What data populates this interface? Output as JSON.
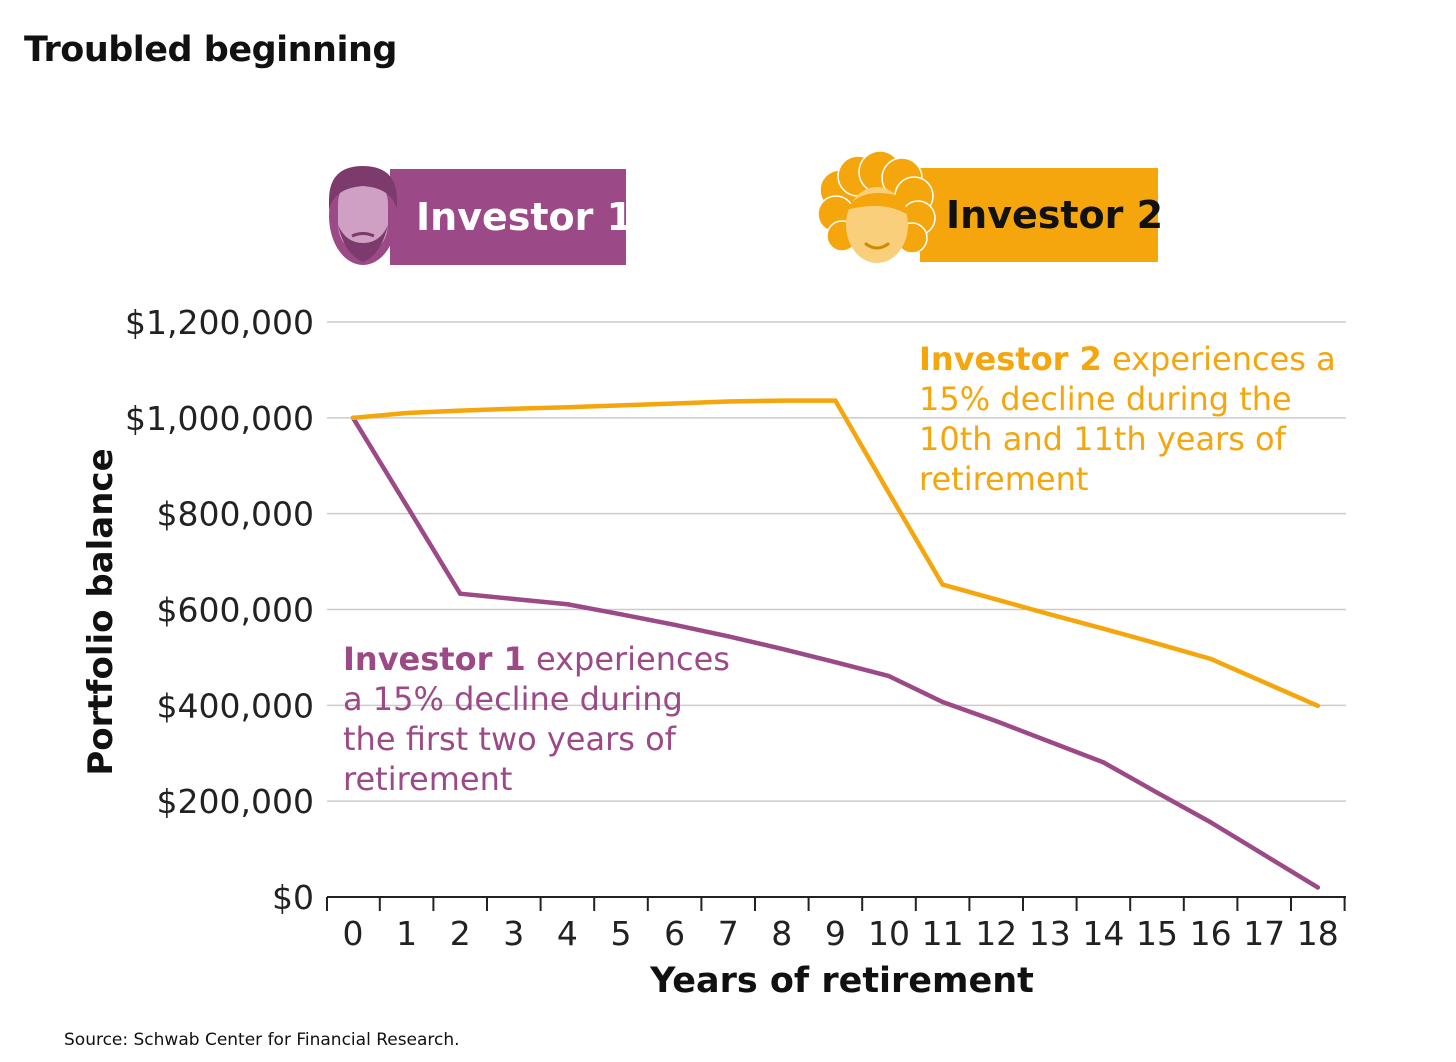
{
  "title": "Troubled beginning",
  "source": "Source: Schwab Center for Financial Research.",
  "colors": {
    "investor1": "#9c4a87",
    "investor1_face": "#cfa0c3",
    "investor2": "#f4a60c",
    "investor2_face": "#f9cf7c",
    "grid": "#cccccc",
    "axis": "#222222"
  },
  "legend": [
    {
      "label": "Investor 1",
      "icon": "bearded-man-avatar-icon"
    },
    {
      "label": "Investor 2",
      "icon": "curly-hair-woman-avatar-icon"
    }
  ],
  "annotations": [
    {
      "bold": "Investor 1",
      "lines": [
        " experiences",
        "a 15% decline during",
        "the first two years of",
        "retirement"
      ]
    },
    {
      "bold": "Investor 2",
      "lines": [
        " experiences a",
        "15% decline during the",
        "10th and 11th years of",
        "retirement"
      ]
    }
  ],
  "chart_data": {
    "type": "line",
    "title": "",
    "xlabel": "Years of retirement",
    "ylabel": "Portfolio balance",
    "x": [
      0,
      1,
      2,
      3,
      4,
      5,
      6,
      7,
      8,
      9,
      10,
      11,
      12,
      13,
      14,
      15,
      16,
      17,
      18
    ],
    "x_tick_labels": [
      "0",
      "1",
      "2",
      "3",
      "4",
      "5",
      "6",
      "7",
      "8",
      "9",
      "10",
      "11",
      "12",
      "13",
      "14",
      "15",
      "16",
      "17",
      "18"
    ],
    "ylim": [
      0,
      1200000
    ],
    "y_ticks": [
      0,
      200000,
      400000,
      600000,
      800000,
      1000000,
      1200000
    ],
    "y_tick_labels": [
      "$0",
      "$200,000",
      "$400,000",
      "$600,000",
      "$800,000",
      "$1,000,000",
      "$1,200,000"
    ],
    "grid": true,
    "series": [
      {
        "name": "Investor 1",
        "values": [
          1000000,
          817000,
          633000,
          622000,
          611000,
          590000,
          568000,
          544000,
          518000,
          490000,
          461000,
          407000,
          367000,
          324000,
          281000,
          218000,
          156000,
          88000,
          20000
        ]
      },
      {
        "name": "Investor 2",
        "values": [
          1000000,
          1010000,
          1015000,
          1019000,
          1022000,
          1026000,
          1030000,
          1034000,
          1036000,
          1036000,
          843000,
          652000,
          621000,
          590000,
          560000,
          529000,
          497000,
          448000,
          399000
        ]
      }
    ]
  }
}
